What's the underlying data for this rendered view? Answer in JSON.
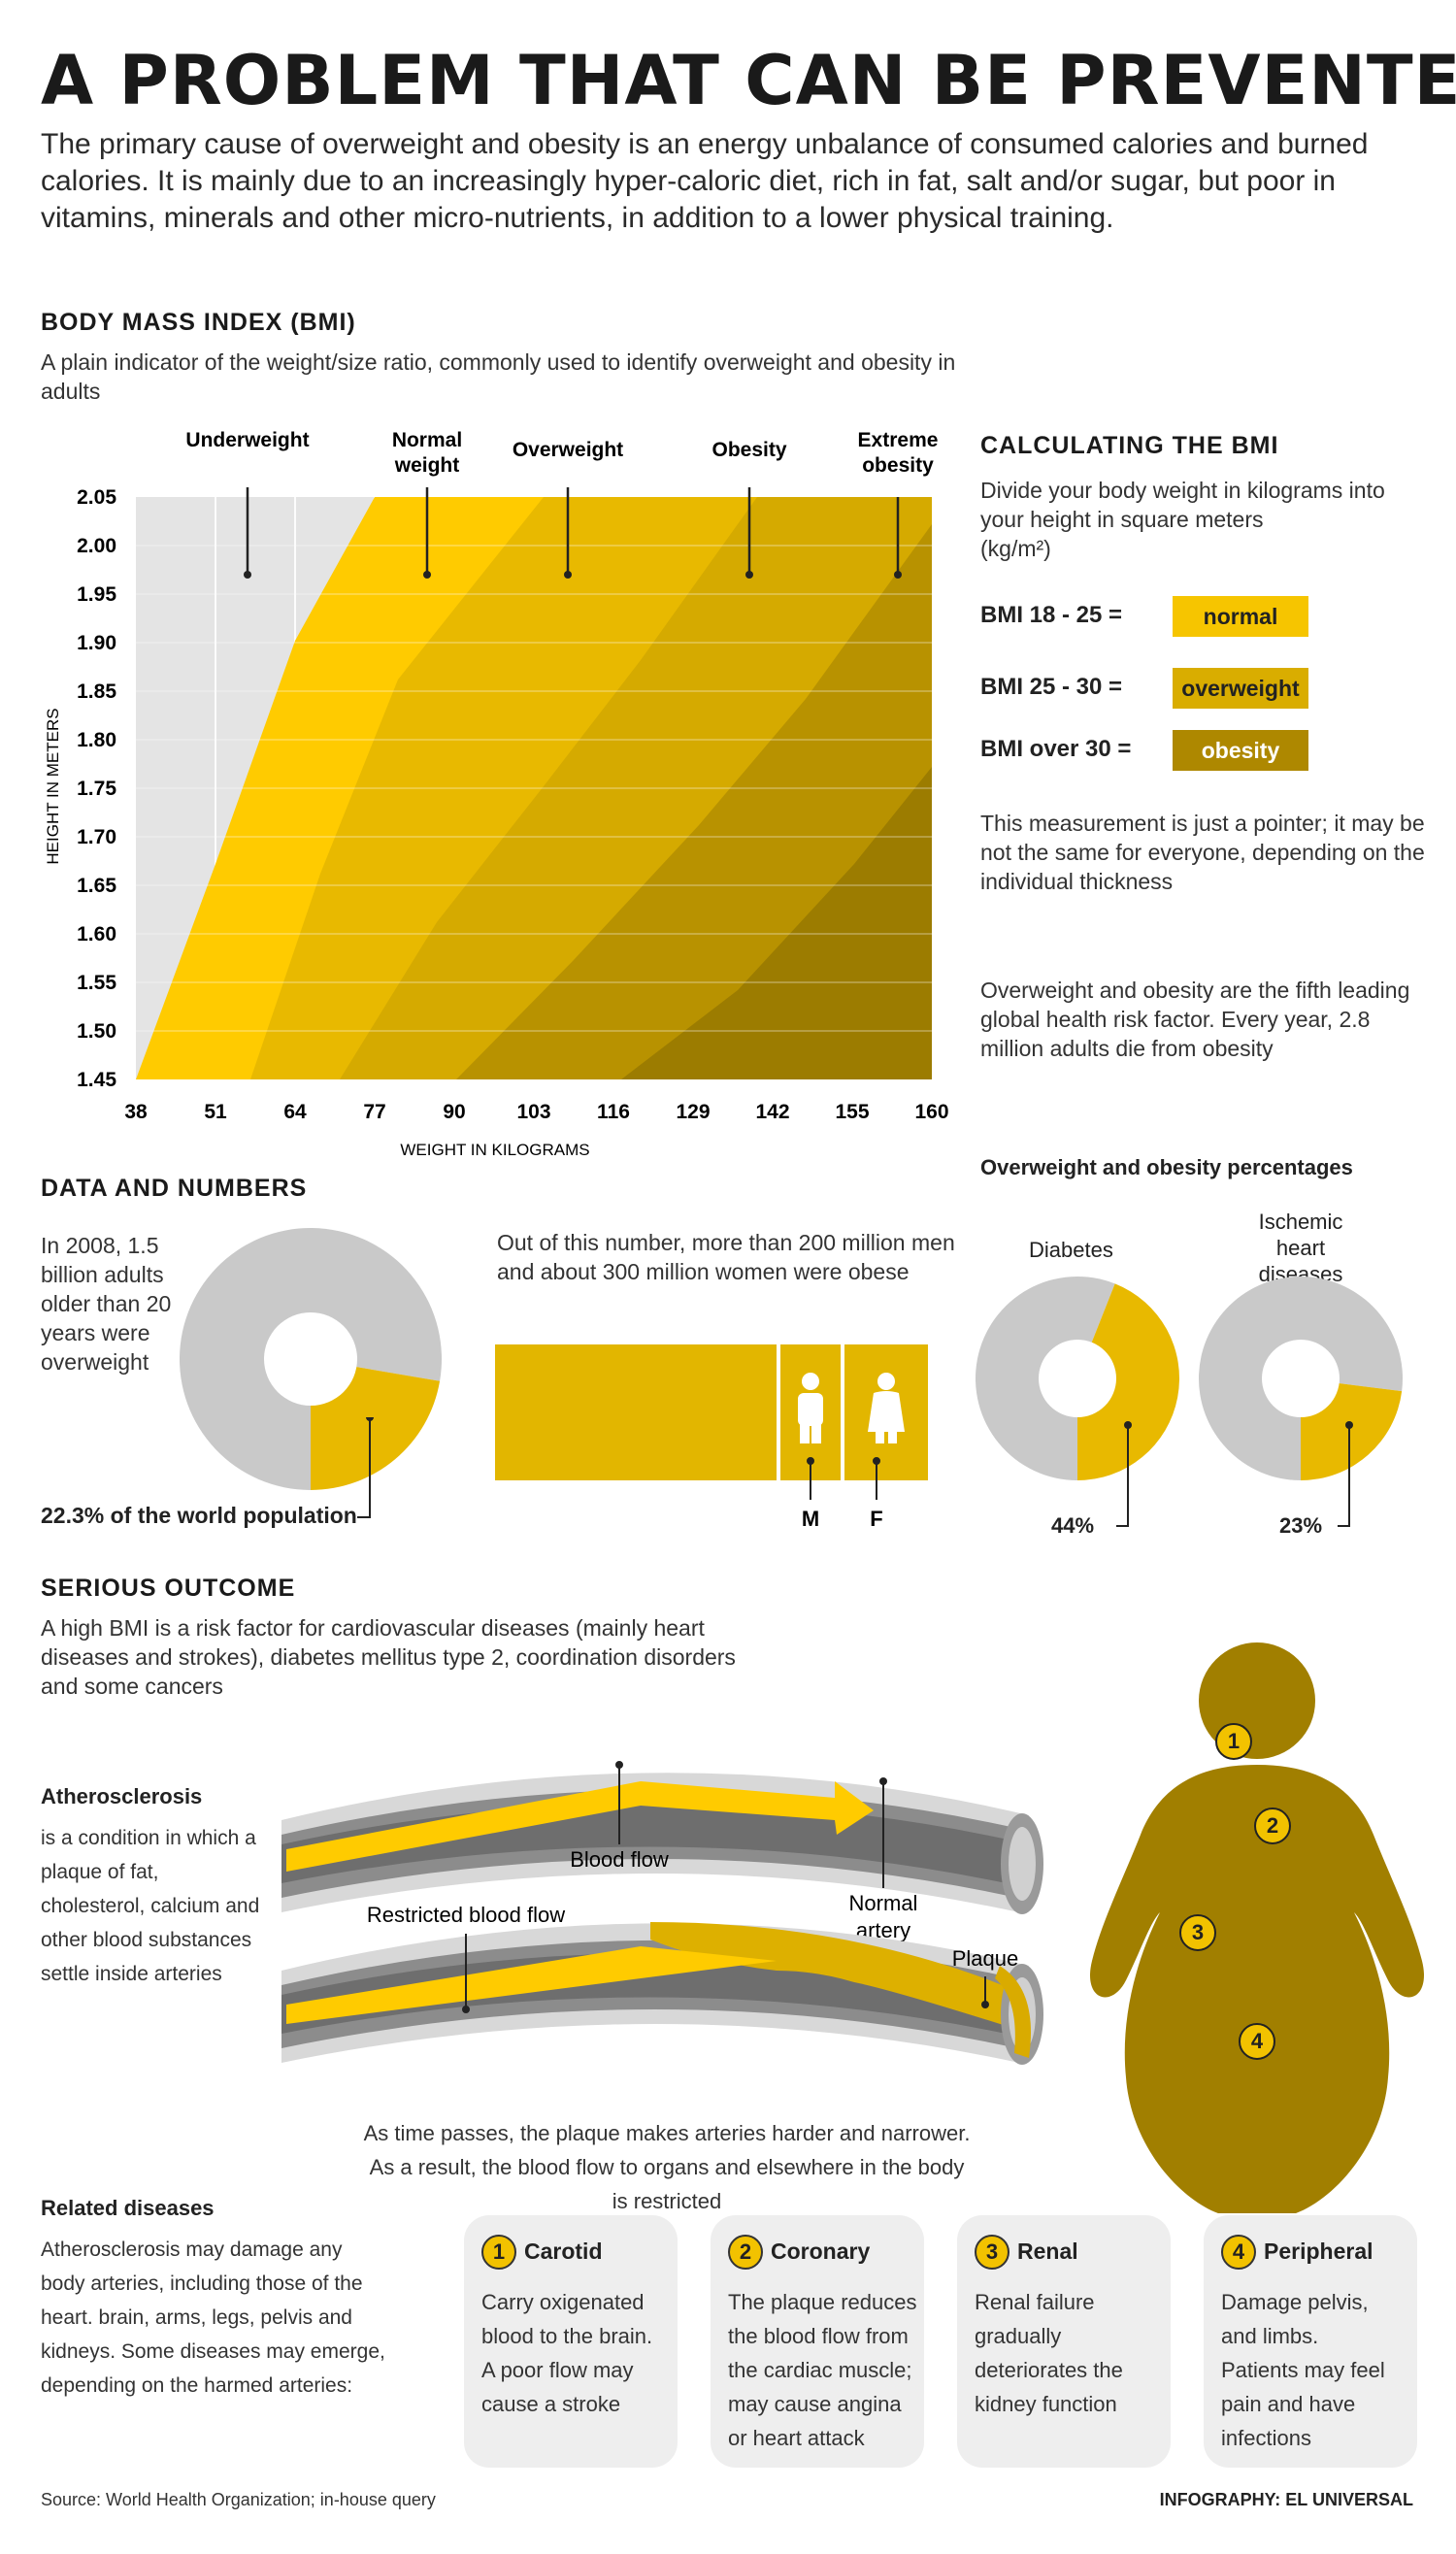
{
  "title": "A PROBLEM THAT CAN BE PREVENTED",
  "intro": "The primary cause of overweight and obesity is an energy unbalance of consumed calories and burned calories. It is mainly due to an increasingly hyper-caloric diet, rich in fat, salt and/or sugar, but poor in vitamins, minerals and other micro-nutrients, in addition to a lower physical training.",
  "bmi": {
    "heading": "BODY MASS INDEX (BMI)",
    "description": "A plain indicator of the weight/size ratio,  commonly used to identify overweight and obesity in adults",
    "categories": [
      "Underweight",
      "Normal weight",
      "Overweight",
      "Obesity",
      "Extreme obesity"
    ],
    "ylabel": "HEIGHT IN METERS",
    "xlabel": "WEIGHT IN KILOGRAMS",
    "yticks": [
      "2.05",
      "2.00",
      "1.95",
      "1.90",
      "1.85",
      "1.80",
      "1.75",
      "1.70",
      "1.65",
      "1.60",
      "1.55",
      "1.50",
      "1.45"
    ],
    "xticks": [
      "38",
      "51",
      "64",
      "77",
      "90",
      "103",
      "116",
      "129",
      "142",
      "155",
      "160"
    ]
  },
  "calc": {
    "heading": "CALCULATING THE BMI",
    "instruction": "Divide your body weight in kilograms into your height in square meters",
    "unit": "(kg/m²)",
    "rows": [
      {
        "range": "BMI 18 - 25 =",
        "label": "normal",
        "color": "#f6c500"
      },
      {
        "range": "BMI 25 - 30 =",
        "label": "overweight",
        "color": "#d9ad00"
      },
      {
        "range": "BMI over 30 =",
        "label": "obesity",
        "color": "#ae8800"
      }
    ],
    "note1": "This measurement is just a pointer; it may be not the same for everyone, depending on the individual thickness",
    "note2": "Overweight and obesity are the fifth leading global health risk factor. Every year, 2.8 million adults die from obesity"
  },
  "data": {
    "heading": "DATA AND NUMBERS",
    "donut_text": "In 2008, 1.5 billion adults older than 20 years were overweight",
    "donut_value": 22.3,
    "donut_caption": "22.3% of the world population",
    "obese_text": "Out of this number, more than 200 million men and about 300 million women were obese",
    "men_label": "M",
    "women_label": "F",
    "pct_heading": "Overweight and obesity percentages",
    "diabetes_label": "Diabetes",
    "diabetes_value": 44,
    "diabetes_caption": "44%",
    "heart_label": "Ischemic heart diseases",
    "heart_value": 23,
    "heart_caption": "23%"
  },
  "outcome": {
    "heading": "SERIOUS OUTCOME",
    "description": "A high BMI is a risk factor for cardiovascular diseases (mainly heart diseases and strokes), diabetes mellitus type 2, coordination disorders and some cancers",
    "athero_title": "Atherosclerosis",
    "athero_text": "is a condition in which a plaque of fat, cholesterol, calcium and other blood substances settle inside arteries",
    "blood_flow": "Blood flow",
    "normal_artery": "Normal artery",
    "restricted": "Restricted blood flow",
    "plaque": "Plaque",
    "caption": "As time passes, the plaque makes arteries harder and narrower. As a result, the blood flow to organs and elsewhere in the body is restricted",
    "body_points": [
      "1",
      "2",
      "3",
      "4"
    ]
  },
  "related": {
    "heading": "Related diseases",
    "text": "Atherosclerosis may damage any body arteries, including those of the heart. brain, arms, legs, pelvis and kidneys. Some diseases may emerge, depending on the harmed arteries:",
    "cards": [
      {
        "num": "1",
        "title": "Carotid",
        "body": "Carry oxigenated blood to the brain. A poor flow may cause a stroke"
      },
      {
        "num": "2",
        "title": "Coronary",
        "body": "The plaque reduces the blood flow from the cardiac muscle; may cause angina or heart attack"
      },
      {
        "num": "3",
        "title": "Renal",
        "body": "Renal failure gradually deteriorates the kidney function"
      },
      {
        "num": "4",
        "title": "Peripheral",
        "body": "Damage pelvis, and limbs. Patients may feel pain and have infections"
      }
    ]
  },
  "footer": {
    "source": "Source: World Health Organization; in-house query",
    "credit": "INFOGRAPHY: EL UNIVERSAL"
  },
  "colors": {
    "gray": "#c9c9c9",
    "yellow1": "#ffcb00",
    "yellow2": "#e8b900",
    "yellow3": "#d5aa00",
    "olive1": "#b89200",
    "olive2": "#9c7c00",
    "body": "#a17f00"
  }
}
